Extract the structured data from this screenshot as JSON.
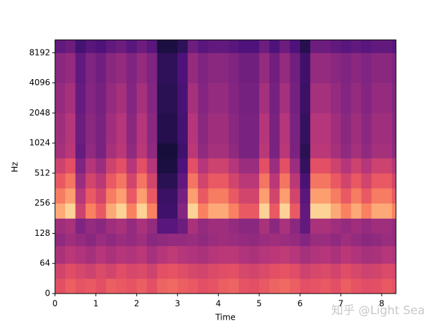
{
  "chart_data": {
    "type": "heatmap",
    "xlabel": "Time",
    "ylabel": "Hz",
    "watermark": "知乎 @Light Sea",
    "colormap": "magma",
    "zlim": [
      -80,
      0
    ],
    "yscale": "symlog",
    "linthresh": 64,
    "xlim": [
      0,
      8.35
    ],
    "ylim": [
      0,
      11025
    ],
    "xticks": [
      0,
      1,
      2,
      3,
      4,
      5,
      6,
      7,
      8
    ],
    "yticks": [
      0,
      64,
      128,
      256,
      512,
      1024,
      2048,
      4096,
      8192
    ],
    "x_bins": [
      0,
      0.25,
      0.5,
      0.75,
      1,
      1.25,
      1.5,
      1.75,
      2,
      2.25,
      2.5,
      2.75,
      3,
      3.25,
      3.5,
      3.75,
      4,
      4.25,
      4.5,
      4.75,
      5,
      5.25,
      5.5,
      5.75,
      6,
      6.25,
      6.5,
      6.75,
      7,
      7.25,
      7.5,
      7.75,
      8,
      8.25,
      8.35
    ],
    "y_bins": [
      0,
      32,
      64,
      96,
      128,
      181,
      256,
      362,
      512,
      724,
      1024,
      2048,
      4096,
      8192,
      11025
    ],
    "z": [
      [
        -30,
        -27,
        -29,
        -28,
        -30,
        -27,
        -28,
        -29,
        -27,
        -30,
        -26,
        -25,
        -27,
        -28,
        -30,
        -29,
        -27,
        -26,
        -29,
        -30,
        -28,
        -26,
        -25,
        -27,
        -30,
        -29,
        -28,
        -30,
        -27,
        -29,
        -31,
        -30,
        -28,
        -29
      ],
      [
        -34,
        -31,
        -33,
        -35,
        -32,
        -34,
        -31,
        -33,
        -32,
        -35,
        -30,
        -29,
        -31,
        -33,
        -34,
        -32,
        -31,
        -30,
        -33,
        -34,
        -32,
        -30,
        -29,
        -31,
        -35,
        -33,
        -32,
        -34,
        -31,
        -33,
        -35,
        -34,
        -32,
        -33
      ],
      [
        -42,
        -39,
        -41,
        -43,
        -40,
        -42,
        -40,
        -41,
        -39,
        -43,
        -40,
        -38,
        -40,
        -41,
        -42,
        -40,
        -39,
        -39,
        -41,
        -42,
        -40,
        -39,
        -38,
        -40,
        -43,
        -41,
        -40,
        -42,
        -39,
        -41,
        -43,
        -42,
        -40,
        -41
      ],
      [
        -47,
        -44,
        -46,
        -48,
        -45,
        -47,
        -45,
        -46,
        -44,
        -48,
        -47,
        -46,
        -46,
        -45,
        -47,
        -45,
        -44,
        -45,
        -46,
        -47,
        -45,
        -44,
        -45,
        -46,
        -49,
        -45,
        -45,
        -47,
        -44,
        -46,
        -48,
        -47,
        -45,
        -46
      ],
      [
        -44,
        -42,
        -50,
        -46,
        -48,
        -44,
        -42,
        -46,
        -42,
        -46,
        -58,
        -58,
        -54,
        -42,
        -46,
        -44,
        -44,
        -46,
        -48,
        -48,
        -42,
        -48,
        -42,
        -48,
        -56,
        -42,
        -42,
        -44,
        -46,
        -44,
        -46,
        -44,
        -44,
        -46
      ],
      [
        -14,
        -7,
        -35,
        -21,
        -28,
        -14,
        -7,
        -21,
        -7,
        -21,
        -63,
        -63,
        -49,
        -7,
        -21,
        -14,
        -14,
        -21,
        -28,
        -28,
        -7,
        -28,
        -7,
        -28,
        -56,
        -7,
        -7,
        -14,
        -21,
        -14,
        -21,
        -14,
        -14,
        -21
      ],
      [
        -22,
        -16,
        -40,
        -28,
        -34,
        -22,
        -16,
        -28,
        -16,
        -28,
        -64,
        -64,
        -52,
        -16,
        -28,
        -22,
        -22,
        -28,
        -34,
        -34,
        -16,
        -34,
        -16,
        -34,
        -58,
        -16,
        -16,
        -22,
        -28,
        -22,
        -28,
        -22,
        -22,
        -28
      ],
      [
        -28,
        -23,
        -45,
        -34,
        -39,
        -28,
        -23,
        -34,
        -23,
        -34,
        -67,
        -67,
        -56,
        -23,
        -34,
        -28,
        -28,
        -34,
        -39,
        -39,
        -23,
        -39,
        -23,
        -39,
        -61,
        -23,
        -23,
        -28,
        -34,
        -28,
        -34,
        -28,
        -28,
        -34
      ],
      [
        -35,
        -30,
        -50,
        -40,
        -45,
        -35,
        -30,
        -40,
        -30,
        -40,
        -70,
        -70,
        -60,
        -30,
        -40,
        -35,
        -35,
        -40,
        -45,
        -45,
        -30,
        -45,
        -30,
        -45,
        -65,
        -30,
        -30,
        -35,
        -40,
        -35,
        -40,
        -35,
        -35,
        -40
      ],
      [
        -43,
        -39,
        -55,
        -47,
        -51,
        -43,
        -39,
        -47,
        -39,
        -47,
        -71,
        -71,
        -63,
        -39,
        -47,
        -43,
        -43,
        -47,
        -51,
        -51,
        -39,
        -51,
        -39,
        -51,
        -67,
        -39,
        -39,
        -43,
        -47,
        -43,
        -47,
        -43,
        -43,
        -47
      ],
      [
        -44,
        -40,
        -54,
        -48,
        -51,
        -44,
        -40,
        -48,
        -40,
        -48,
        -68,
        -68,
        -62,
        -40,
        -48,
        -44,
        -44,
        -48,
        -51,
        -51,
        -40,
        -51,
        -40,
        -51,
        -65,
        -40,
        -40,
        -44,
        -48,
        -44,
        -48,
        -44,
        -44,
        -48
      ],
      [
        -46,
        -43,
        -55,
        -49,
        -52,
        -46,
        -43,
        -49,
        -43,
        -49,
        -67,
        -67,
        -61,
        -43,
        -49,
        -46,
        -46,
        -49,
        -52,
        -52,
        -43,
        -52,
        -43,
        -52,
        -64,
        -43,
        -43,
        -46,
        -49,
        -46,
        -49,
        -46,
        -46,
        -49
      ],
      [
        -48,
        -46,
        -56,
        -50,
        -53,
        -48,
        -46,
        -50,
        -46,
        -50,
        -66,
        -66,
        -60,
        -46,
        -50,
        -48,
        -48,
        -50,
        -53,
        -53,
        -46,
        -53,
        -46,
        -53,
        -63,
        -46,
        -46,
        -48,
        -50,
        -48,
        -50,
        -48,
        -48,
        -50
      ],
      [
        -56,
        -54,
        -62,
        -58,
        -60,
        -56,
        -54,
        -58,
        -54,
        -58,
        -70,
        -70,
        -66,
        -54,
        -58,
        -56,
        -56,
        -58,
        -60,
        -60,
        -54,
        -60,
        -54,
        -60,
        -68,
        -54,
        -54,
        -56,
        -58,
        -56,
        -58,
        -56,
        -56,
        -58
      ]
    ]
  }
}
